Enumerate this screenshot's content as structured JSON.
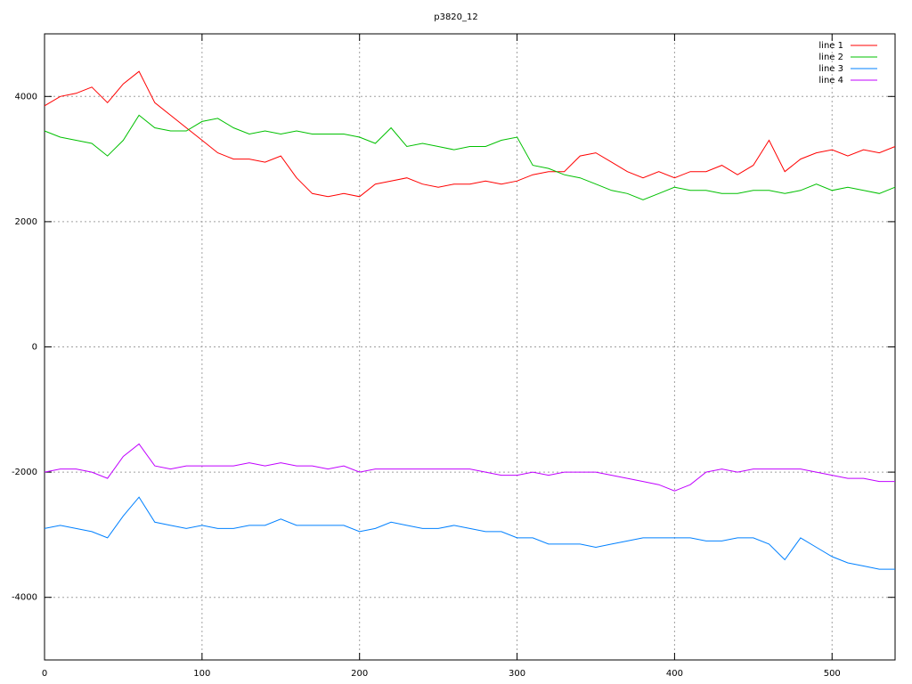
{
  "chart_data": {
    "type": "line",
    "title": "p3820_12",
    "x": [
      0,
      10,
      20,
      30,
      40,
      50,
      60,
      70,
      80,
      90,
      100,
      110,
      120,
      130,
      140,
      150,
      160,
      170,
      180,
      190,
      200,
      210,
      220,
      230,
      240,
      250,
      260,
      270,
      280,
      290,
      300,
      310,
      320,
      330,
      340,
      350,
      360,
      370,
      380,
      390,
      400,
      410,
      420,
      430,
      440,
      450,
      460,
      470,
      480,
      490,
      500,
      510,
      520,
      530,
      540
    ],
    "series": [
      {
        "name": "line 1",
        "color": "#ff0000",
        "values": [
          3850,
          4000,
          4050,
          4150,
          3900,
          4200,
          4400,
          3900,
          3700,
          3500,
          3300,
          3100,
          3000,
          3000,
          2950,
          3050,
          2700,
          2450,
          2400,
          2450,
          2400,
          2600,
          2650,
          2700,
          2600,
          2550,
          2600,
          2600,
          2650,
          2600,
          2650,
          2750,
          2800,
          2800,
          3050,
          3100,
          2950,
          2800,
          2700,
          2800,
          2700,
          2800,
          2800,
          2900,
          2750,
          2900,
          3300,
          2800,
          3000,
          3100,
          3150,
          3050,
          3150,
          3100,
          3200
        ]
      },
      {
        "name": "line 2",
        "color": "#00c000",
        "values": [
          3450,
          3350,
          3300,
          3250,
          3050,
          3300,
          3700,
          3500,
          3450,
          3450,
          3600,
          3650,
          3500,
          3400,
          3450,
          3400,
          3450,
          3400,
          3400,
          3400,
          3350,
          3250,
          3500,
          3200,
          3250,
          3200,
          3150,
          3200,
          3200,
          3300,
          3350,
          2900,
          2850,
          2750,
          2700,
          2600,
          2500,
          2450,
          2350,
          2450,
          2550,
          2500,
          2500,
          2450,
          2450,
          2500,
          2500,
          2450,
          2500,
          2600,
          2500,
          2550,
          2500,
          2450,
          2550
        ]
      },
      {
        "name": "line 3",
        "color": "#0080ff",
        "values": [
          -2900,
          -2850,
          -2900,
          -2950,
          -3050,
          -2700,
          -2400,
          -2800,
          -2850,
          -2900,
          -2850,
          -2900,
          -2900,
          -2850,
          -2850,
          -2750,
          -2850,
          -2850,
          -2850,
          -2850,
          -2950,
          -2900,
          -2800,
          -2850,
          -2900,
          -2900,
          -2850,
          -2900,
          -2950,
          -2950,
          -3050,
          -3050,
          -3150,
          -3150,
          -3150,
          -3200,
          -3150,
          -3100,
          -3050,
          -3050,
          -3050,
          -3050,
          -3100,
          -3100,
          -3050,
          -3050,
          -3150,
          -3400,
          -3050,
          -3200,
          -3350,
          -3450,
          -3500,
          -3550,
          -3550
        ]
      },
      {
        "name": "line 4",
        "color": "#c000ff",
        "values": [
          -2000,
          -1950,
          -1950,
          -2000,
          -2100,
          -1750,
          -1550,
          -1900,
          -1950,
          -1900,
          -1900,
          -1900,
          -1900,
          -1850,
          -1900,
          -1850,
          -1900,
          -1900,
          -1950,
          -1900,
          -2000,
          -1950,
          -1950,
          -1950,
          -1950,
          -1950,
          -1950,
          -1950,
          -2000,
          -2050,
          -2050,
          -2000,
          -2050,
          -2000,
          -2000,
          -2000,
          -2050,
          -2100,
          -2150,
          -2200,
          -2300,
          -2200,
          -2000,
          -1950,
          -2000,
          -1950,
          -1950,
          -1950,
          -1950,
          -2000,
          -2050,
          -2100,
          -2100,
          -2150,
          -2150
        ]
      }
    ],
    "xlim": [
      0,
      540
    ],
    "xticks": [
      0,
      100,
      200,
      300,
      400,
      500
    ],
    "ylim": [
      -5000,
      5000
    ],
    "yticks": [
      -4000,
      -2000,
      0,
      2000,
      4000
    ],
    "grid": true,
    "legend": "top-right"
  }
}
